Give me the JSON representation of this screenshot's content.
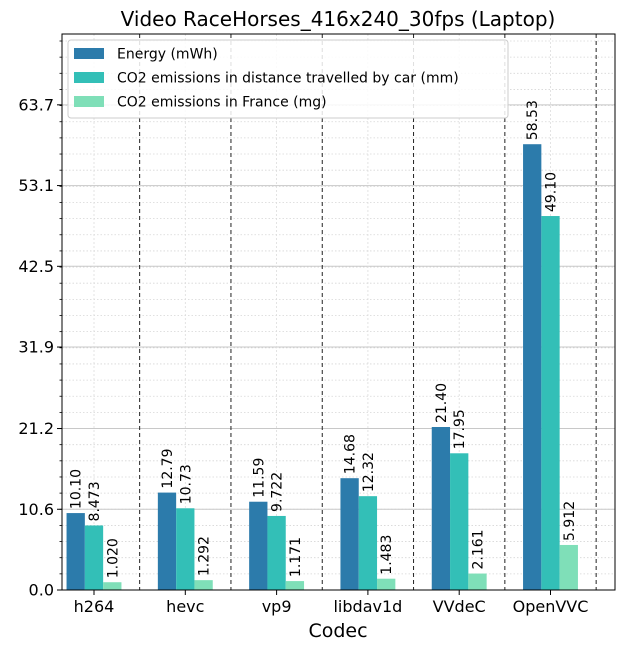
{
  "chart_data": {
    "type": "bar",
    "title": "Video RaceHorses_416x240_30fps (Laptop)",
    "xlabel": "Codec",
    "ylabel": "",
    "categories": [
      "h264",
      "hevc",
      "vp9",
      "libdav1d",
      "VVdeC",
      "OpenVVC"
    ],
    "series": [
      {
        "name": "Energy (mWh)",
        "color": "#2c7bab",
        "values": [
          10.1,
          12.79,
          11.59,
          14.68,
          21.4,
          58.53
        ],
        "labels": [
          "10.10",
          "12.79",
          "11.59",
          "14.68",
          "21.40",
          "58.53"
        ]
      },
      {
        "name": "CO2 emissions in distance travelled by car (mm)",
        "color": "#33bfb7",
        "values": [
          8.473,
          10.73,
          9.722,
          12.32,
          17.95,
          49.1
        ],
        "labels": [
          "8.473",
          "10.73",
          "9.722",
          "12.32",
          "17.95",
          "49.10"
        ]
      },
      {
        "name": "CO2 emissions in France (mg)",
        "color": "#7fdfb8",
        "values": [
          1.02,
          1.292,
          1.171,
          1.483,
          2.161,
          5.912
        ],
        "labels": [
          "1.020",
          "1.292",
          "1.171",
          "1.483",
          "2.161",
          "5.912"
        ]
      }
    ],
    "ylim": [
      0,
      73
    ],
    "yticks": [
      0.0,
      10.6,
      21.2,
      31.9,
      42.5,
      53.1,
      63.7
    ],
    "ytick_labels": [
      "0.0",
      "10.6",
      "21.2",
      "31.9",
      "42.5",
      "53.1",
      "63.7"
    ],
    "grid": true,
    "legend_position": "top-left"
  }
}
